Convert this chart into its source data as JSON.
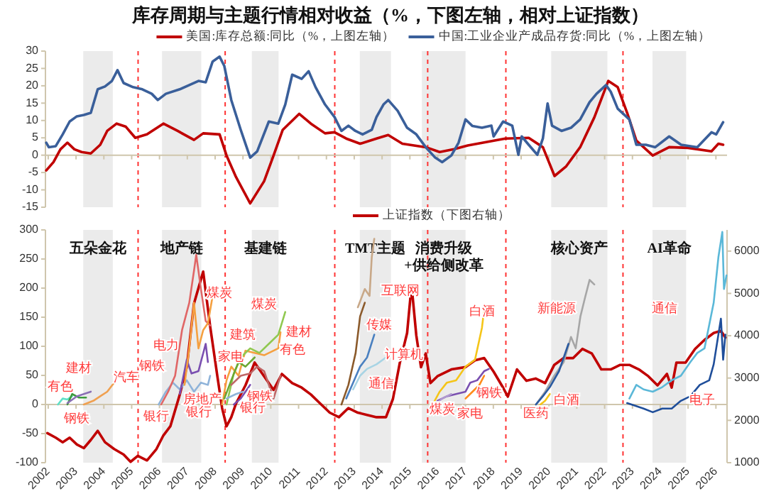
{
  "chart_data": [
    {
      "type": "line",
      "title": "库存周期与主题行情相对收益（%，下图左轴，相对上证指数）",
      "xlim": [
        2001.9,
        2026.4
      ],
      "xticks": [
        2002,
        2003,
        2004,
        2005,
        2006,
        2007,
        2008,
        2009,
        2010,
        2011,
        2012,
        2013,
        2014,
        2015,
        2016,
        2017,
        2018,
        2019,
        2020,
        2021,
        2022,
        2023,
        2024,
        2025,
        2026
      ],
      "ylim": [
        -15,
        30
      ],
      "yticks": [
        -15,
        -10,
        -5,
        0,
        5,
        10,
        15,
        20,
        25,
        30
      ],
      "tick_labels": "y",
      "legend": "top",
      "bands": [
        {
          "axis": "x",
          "from": 2003.26,
          "to": 2004.32,
          "color": "#ebebeb"
        },
        {
          "axis": "x",
          "from": 2006.09,
          "to": 2007.5,
          "color": "#ebebeb"
        },
        {
          "axis": "x",
          "from": 2009.32,
          "to": 2010.28,
          "color": "#ebebeb"
        },
        {
          "axis": "x",
          "from": 2013.2,
          "to": 2014.32,
          "color": "#ebebeb"
        },
        {
          "axis": "x",
          "from": 2015.43,
          "to": 2017.0,
          "color": "#ebebeb"
        },
        {
          "axis": "x",
          "from": 2020.08,
          "to": 2022.1,
          "color": "#ebebeb"
        },
        {
          "axis": "x",
          "from": 2023.72,
          "to": 2024.93,
          "color": "#ebebeb"
        }
      ],
      "ref_lines": [
        {
          "axis": "x",
          "value": 2005.23,
          "color": "#ff3333",
          "line_style": "dashed"
        },
        {
          "axis": "x",
          "value": 2008.36,
          "color": "#ff3333",
          "line_style": "dashed"
        },
        {
          "axis": "x",
          "value": 2012.3,
          "color": "#ff3333",
          "line_style": "dashed"
        },
        {
          "axis": "x",
          "value": 2015.64,
          "color": "#ff3333",
          "line_style": "dashed"
        },
        {
          "axis": "x",
          "value": 2018.45,
          "color": "#ff3333",
          "line_style": "dashed"
        },
        {
          "axis": "x",
          "value": 2022.66,
          "color": "#ff3333",
          "line_style": "dashed"
        }
      ],
      "series": [
        {
          "name": "美国:库存总额:同比（%，上图左轴）",
          "color": "#c00000",
          "x": [
            2001.93,
            2002.19,
            2002.44,
            2002.69,
            2002.94,
            2003.2,
            2003.53,
            2003.87,
            2004.12,
            2004.46,
            2004.79,
            2005.13,
            2005.55,
            2006.14,
            2006.65,
            2007.24,
            2007.57,
            2008.16,
            2008.41,
            2008.75,
            2009.26,
            2009.76,
            2010.1,
            2010.43,
            2011.02,
            2011.44,
            2011.95,
            2012.29,
            2012.71,
            2013.21,
            2013.8,
            2014.22,
            2014.73,
            2015.57,
            2016.07,
            2016.58,
            2017.08,
            2018.43,
            2019.27,
            2019.78,
            2020.2,
            2020.62,
            2021.12,
            2021.63,
            2022.13,
            2022.47,
            2022.81,
            2023.14,
            2023.73,
            2024.32,
            2025.0,
            2025.84,
            2026.09,
            2026.26
          ],
          "values": [
            -4.4,
            -2,
            1.7,
            3.6,
            1.7,
            0.9,
            0.5,
            3,
            7,
            9.1,
            8.2,
            5,
            6,
            9.1,
            7,
            4.4,
            6.3,
            6,
            -0.1,
            -6.3,
            -13.9,
            -7.5,
            -0.1,
            7.3,
            11.9,
            9.1,
            6.3,
            6.6,
            4.8,
            3.3,
            4.8,
            5.8,
            3.3,
            2.3,
            0.9,
            1.7,
            2.8,
            4.8,
            5,
            2.3,
            -6,
            -3.2,
            2.3,
            10.9,
            21.4,
            19.6,
            12.2,
            4.2,
            -0.1,
            2.3,
            2.1,
            1.1,
            3.3,
            3
          ]
        },
        {
          "name": "中国:工业企业产成品存货:同比（%，上图左轴）",
          "color": "#3a5f9a",
          "x": [
            2001.93,
            2002.02,
            2002.27,
            2002.52,
            2002.77,
            2003.03,
            2003.28,
            2003.53,
            2003.78,
            2004.04,
            2004.29,
            2004.49,
            2004.71,
            2005.05,
            2005.38,
            2005.72,
            2005.94,
            2006.23,
            2006.73,
            2007.07,
            2007.4,
            2007.66,
            2007.91,
            2008.16,
            2008.33,
            2008.58,
            2008.92,
            2009.26,
            2009.51,
            2009.93,
            2010.27,
            2010.52,
            2010.77,
            2011.11,
            2011.36,
            2011.61,
            2011.95,
            2012.29,
            2012.54,
            2012.79,
            2013.04,
            2013.3,
            2013.63,
            2013.8,
            2014.05,
            2014.22,
            2014.56,
            2014.9,
            2015.23,
            2015.57,
            2015.91,
            2016.16,
            2016.49,
            2016.75,
            2017.0,
            2017.25,
            2017.59,
            2017.93,
            2018.01,
            2018.35,
            2018.68,
            2018.9,
            2019.02,
            2019.27,
            2019.58,
            2019.78,
            2019.95,
            2020.11,
            2020.45,
            2020.79,
            2021.12,
            2021.46,
            2021.71,
            2022.05,
            2022.22,
            2022.47,
            2022.89,
            2023.14,
            2023.48,
            2023.82,
            2024.32,
            2024.75,
            2025.33,
            2025.84,
            2026.01,
            2026.26
          ],
          "values": [
            3.6,
            2.3,
            2.6,
            6,
            9.7,
            11.2,
            11.6,
            12.2,
            19,
            19.8,
            21.4,
            24.5,
            20.8,
            19.6,
            19,
            17.7,
            15.9,
            17.7,
            19,
            20.2,
            21.4,
            21,
            27,
            28.4,
            25.7,
            15.9,
            7.3,
            -0.7,
            1.1,
            9.7,
            9.1,
            14.6,
            23.2,
            22,
            24.2,
            19.6,
            14.6,
            11,
            7,
            8.5,
            7,
            6,
            7.3,
            11,
            14.6,
            15.9,
            12.8,
            7.9,
            6,
            2.3,
            -0.7,
            -2,
            -0.1,
            3.6,
            10.3,
            8.4,
            7.9,
            8.5,
            5.4,
            9.7,
            8.5,
            0.1,
            5.4,
            3,
            0.1,
            4.8,
            14.9,
            8.5,
            7,
            7.9,
            10.3,
            15.3,
            17.7,
            20.2,
            18.3,
            13.4,
            10.3,
            3,
            3,
            2.3,
            5.4,
            3,
            2.3,
            6.6,
            6,
            9.5
          ]
        }
      ]
    },
    {
      "type": "line",
      "xlim": [
        2001.9,
        2026.4
      ],
      "xticks": [
        2002,
        2003,
        2004,
        2005,
        2006,
        2007,
        2008,
        2009,
        2010,
        2011,
        2012,
        2013,
        2014,
        2015,
        2016,
        2017,
        2018,
        2019,
        2020,
        2021,
        2022,
        2023,
        2024,
        2025,
        2026
      ],
      "ylim": [
        -100,
        300
      ],
      "yticks": [
        -100,
        -50,
        0,
        50,
        100,
        150,
        200,
        250,
        300
      ],
      "y2lim": [
        1000,
        6500
      ],
      "y2ticks": [
        1000,
        2000,
        3000,
        4000,
        5000,
        6000
      ],
      "legend": "top",
      "bands": [
        {
          "axis": "x",
          "from": 2003.26,
          "to": 2004.32,
          "label": "五朵金花",
          "color": "#ebebeb"
        },
        {
          "axis": "x",
          "from": 2006.09,
          "to": 2007.5,
          "label": "地产链",
          "color": "#ebebeb"
        },
        {
          "axis": "x",
          "from": 2009.32,
          "to": 2010.28,
          "label": "基建链",
          "color": "#ebebeb"
        },
        {
          "axis": "x",
          "from": 2013.2,
          "to": 2014.32,
          "label": "TMT主题",
          "color": "#ebebeb"
        },
        {
          "axis": "x",
          "from": 2015.43,
          "to": 2017.0,
          "label": "消费升级\n+供给侧改革",
          "color": "#ebebeb"
        },
        {
          "axis": "x",
          "from": 2020.08,
          "to": 2022.1,
          "label": "核心资产",
          "color": "#ebebeb"
        },
        {
          "axis": "x",
          "from": 2023.72,
          "to": 2024.93,
          "label": "AI革命",
          "color": "#ebebeb"
        }
      ],
      "ref_lines": [
        {
          "axis": "x",
          "value": 2005.23,
          "color": "#ff3333",
          "line_style": "dashed"
        },
        {
          "axis": "x",
          "value": 2008.36,
          "color": "#ff3333",
          "line_style": "dashed"
        },
        {
          "axis": "x",
          "value": 2012.3,
          "color": "#ff3333",
          "line_style": "dashed"
        },
        {
          "axis": "x",
          "value": 2015.64,
          "color": "#ff3333",
          "line_style": "dashed"
        },
        {
          "axis": "x",
          "value": 2018.45,
          "color": "#ff3333",
          "line_style": "dashed"
        },
        {
          "axis": "x",
          "value": 2022.66,
          "color": "#ff3333",
          "line_style": "dashed"
        }
      ],
      "annotations": [
        "有色",
        "建材",
        "钢铁",
        "汽车",
        "钢铁",
        "电力",
        "银行",
        "房地产",
        "银行",
        "煤炭",
        "家电",
        "建筑",
        "煤炭",
        "钢铁",
        "银行",
        "建材",
        "有色",
        "互联网",
        "传媒",
        "计算机",
        "通信",
        "白酒",
        "钢铁",
        "家电",
        "煤炭",
        "新能源",
        "白酒",
        "医药",
        "通信",
        "电子"
      ],
      "series": [
        {
          "name": "上证指数（下图右轴）",
          "color": "#c00000",
          "axis": "y2",
          "x": [
            2001.97,
            2002.27,
            2002.52,
            2002.77,
            2003.03,
            2003.28,
            2003.53,
            2003.78,
            2004.04,
            2004.37,
            2004.71,
            2004.96,
            2005.22,
            2005.55,
            2005.89,
            2006.14,
            2006.39,
            2006.73,
            2006.98,
            2007.24,
            2007.57,
            2007.82,
            2008.08,
            2008.25,
            2008.41,
            2008.58,
            2008.75,
            2009.09,
            2009.42,
            2009.76,
            2010.1,
            2010.4,
            2010.77,
            2011.11,
            2011.44,
            2011.78,
            2012.12,
            2012.45,
            2012.79,
            2013.13,
            2013.46,
            2013.8,
            2014.14,
            2014.39,
            2014.64,
            2014.9,
            2015.06,
            2015.23,
            2015.4,
            2015.57,
            2015.74,
            2015.99,
            2016.49,
            2017.0,
            2017.34,
            2017.67,
            2018.01,
            2018.35,
            2018.52,
            2018.85,
            2019.19,
            2019.52,
            2019.86,
            2020.19,
            2020.53,
            2020.87,
            2021.2,
            2021.54,
            2021.88,
            2022.22,
            2022.56,
            2022.89,
            2023.23,
            2023.57,
            2023.9,
            2024.24,
            2024.41,
            2024.58,
            2024.91,
            2025.25,
            2025.59,
            2025.92,
            2026.18,
            2026.34
          ],
          "values": [
            1699,
            1591,
            1484,
            1591,
            1430,
            1344,
            1537,
            1752,
            1484,
            1322,
            1193,
            1021,
            1161,
            1054,
            1322,
            1645,
            1860,
            2612,
            3257,
            4762,
            5515,
            4225,
            3043,
            2290,
            1860,
            2075,
            2397,
            2827,
            3365,
            3043,
            2720,
            3096,
            2881,
            2774,
            2612,
            2397,
            2182,
            2075,
            2290,
            2182,
            2129,
            2075,
            2075,
            2505,
            3365,
            4064,
            5193,
            4010,
            3257,
            3580,
            2881,
            3043,
            3204,
            3257,
            3419,
            3472,
            3150,
            2774,
            2559,
            3204,
            2935,
            2989,
            2881,
            3311,
            3472,
            3472,
            3688,
            3580,
            3204,
            3204,
            3311,
            3311,
            3204,
            3043,
            2827,
            3096,
            2774,
            3365,
            3365,
            3688,
            3902,
            4064,
            4117,
            3956
          ]
        },
        {
          "color": "#5ee0c8",
          "x": [
            2002.35,
            2002.52,
            2002.69,
            2002.86
          ],
          "values": [
            0,
            10.2,
            8.6,
            14.1
          ]
        },
        {
          "color": "#3c9a3c",
          "x": [
            2002.69,
            2002.86,
            2003.11,
            2003.36
          ],
          "values": [
            0,
            18,
            11.8,
            11.8
          ]
        },
        {
          "color": "#8a6fb5",
          "x": [
            2002.69,
            2003.03,
            2003.28,
            2003.53
          ],
          "values": [
            2.4,
            14.1,
            18,
            22
          ]
        },
        {
          "color": "#f0a050",
          "x": [
            2003.28,
            2003.62,
            2003.87,
            2004.12,
            2004.37,
            2004.46
          ],
          "values": [
            0,
            6.3,
            14.1,
            22,
            37.6,
            45.5
          ]
        },
        {
          "color": "#8fb3d9",
          "x": [
            2005.97,
            2006.23,
            2006.48,
            2006.73,
            2006.98,
            2007.24,
            2007.49,
            2007.74,
            2007.82
          ],
          "values": [
            0,
            22,
            37.6,
            25.9,
            41.6,
            22,
            37.6,
            33.7,
            49.4
          ]
        },
        {
          "color": "#e06666",
          "x": [
            2006.06,
            2006.31,
            2006.56,
            2006.81,
            2007.07,
            2007.24,
            2007.32,
            2007.49,
            2007.66,
            2007.82
          ],
          "values": [
            0,
            22,
            49.4,
            127.8,
            174.9,
            229.8,
            257.3,
            198.4,
            143.5,
            135.7
          ]
        },
        {
          "color": "#7a4fb0",
          "x": [
            2006.73,
            2006.98,
            2007.15,
            2007.4,
            2007.66,
            2007.74
          ],
          "values": [
            18,
            76.9,
            53.3,
            57.3,
            104.3,
            72.9
          ]
        },
        {
          "color": "#f5a040",
          "x": [
            2006.9,
            2007.07,
            2007.24,
            2007.4,
            2007.57,
            2007.74,
            2007.91
          ],
          "values": [
            33.7,
            96.5,
            174.9,
            96.5,
            127.8,
            139.6,
            186.7
          ]
        },
        {
          "color": "#f5a040",
          "x": [
            2008.25,
            2008.41,
            2008.58,
            2008.84,
            2009.09,
            2009.76,
            2010.27,
            2010.35
          ],
          "values": [
            0,
            41.6,
            65.1,
            49.4,
            92.5,
            84.7,
            96.5,
            123.9
          ]
        },
        {
          "color": "#90c850",
          "x": [
            2008.41,
            2008.67,
            2008.92,
            2009.26,
            2009.59,
            2009.93,
            2010.27,
            2010.52
          ],
          "values": [
            0,
            53.3,
            80.8,
            96.5,
            88.6,
            104.3,
            120,
            159
          ]
        },
        {
          "color": "#6aa832",
          "x": [
            2008.33,
            2008.58,
            2008.84,
            2009.09,
            2009.42
          ],
          "values": [
            10.2,
            41.6,
            72.9,
            65.1,
            80.8
          ]
        },
        {
          "color": "#7a4fb0",
          "x": [
            2008.67,
            2008.92,
            2009.09,
            2009.26
          ],
          "values": [
            0,
            10.2,
            22,
            33.7
          ]
        },
        {
          "color": "#8fb3d9",
          "x": [
            2008.41,
            2008.75,
            2009.0
          ],
          "values": [
            10.2,
            18,
            22
          ]
        },
        {
          "color": "#c06666",
          "x": [
            2008.58,
            2008.92,
            2009.26,
            2009.51,
            2009.76,
            2010.1,
            2010.35
          ],
          "values": [
            33.7,
            49.4,
            53.3,
            65.1,
            57.3,
            10.2,
            49.4
          ]
        },
        {
          "color": "#8b5a2b",
          "x": [
            2012.54,
            2012.79,
            2013.05,
            2013.21,
            2013.38
          ],
          "values": [
            0,
            33.7,
            88.6,
            151.4,
            174.9
          ]
        },
        {
          "color": "#c8a888",
          "x": [
            2013.13,
            2013.38,
            2013.55,
            2013.63,
            2013.72
          ],
          "values": [
            167.1,
            198.4,
            186.7,
            253.3,
            284.7
          ]
        },
        {
          "color": "#4a80c0",
          "x": [
            2012.71,
            2012.96,
            2013.21,
            2013.46,
            2013.72
          ],
          "values": [
            10.2,
            37.6,
            65.1,
            80.8,
            120
          ]
        },
        {
          "color": "#a8d4e4",
          "x": [
            2012.96,
            2013.21,
            2013.46,
            2013.8,
            2014.14
          ],
          "values": [
            25.9,
            49.4,
            61.2,
            69,
            80.8
          ]
        },
        {
          "color": "#f5c518",
          "x": [
            2015.82,
            2016.07,
            2016.33,
            2016.66,
            2017.0,
            2017.34,
            2017.59,
            2017.67
          ],
          "values": [
            0,
            22,
            37.6,
            41.6,
            65.1,
            76.9,
            131.8,
            163.1
          ]
        },
        {
          "color": "#7a50b0",
          "x": [
            2015.99,
            2016.33,
            2016.66,
            2017.0,
            2017.17,
            2017.42,
            2017.67,
            2017.84
          ],
          "values": [
            6.3,
            14.1,
            18,
            22,
            37.6,
            41.6,
            57.3,
            61.2
          ]
        },
        {
          "color": "#ff8c1a",
          "x": [
            2017.0,
            2017.25,
            2017.5,
            2017.67
          ],
          "values": [
            10.2,
            22,
            33.7,
            49.4
          ]
        },
        {
          "color": "#b09ad0",
          "x": [
            2015.91,
            2016.16,
            2016.49
          ],
          "values": [
            0,
            10.2,
            18
          ]
        },
        {
          "color": "#a6a6a6",
          "x": [
            2019.53,
            2019.86,
            2020.19,
            2020.53,
            2020.79,
            2020.96,
            2021.13,
            2021.29,
            2021.46,
            2021.63
          ],
          "values": [
            0,
            22,
            49.4,
            72.9,
            116.1,
            96.5,
            151.4,
            182.7,
            214.1,
            206.3
          ]
        },
        {
          "color": "#f5c518",
          "x": [
            2019.69,
            2019.86,
            2020.03
          ],
          "values": [
            0,
            6.3,
            18
          ]
        },
        {
          "color": "#2a5aa0",
          "x": [
            2019.53,
            2019.78,
            2020.03,
            2020.36,
            2020.7
          ],
          "values": [
            0,
            14.1,
            29.8,
            57.3,
            104.3
          ]
        },
        {
          "color": "#5bb8d8",
          "x": [
            2022.89,
            2023.14,
            2023.4,
            2023.73,
            2024.07,
            2024.41,
            2024.74,
            2025.08,
            2025.33,
            2025.59,
            2025.92,
            2026.09,
            2026.23,
            2026.29,
            2026.38
          ],
          "values": [
            10.2,
            33.7,
            25.9,
            22,
            29.8,
            41.6,
            49.4,
            72.9,
            88.6,
            96.5,
            174.9,
            253.3,
            296.5,
            198.4,
            222
          ]
        },
        {
          "color": "#1f4e9a",
          "x": [
            2022.81,
            2023.06,
            2023.4,
            2023.73,
            2024.07,
            2024.41,
            2024.74,
            2025.08,
            2025.42,
            2025.76,
            2025.92,
            2026.18,
            2026.26,
            2026.34
          ],
          "values": [
            2.4,
            -1.6,
            -7.1,
            -13.3,
            -7.1,
            -7.1,
            6.3,
            14.1,
            33.7,
            41.6,
            69,
            147.5,
            76.9,
            120
          ]
        }
      ]
    }
  ]
}
